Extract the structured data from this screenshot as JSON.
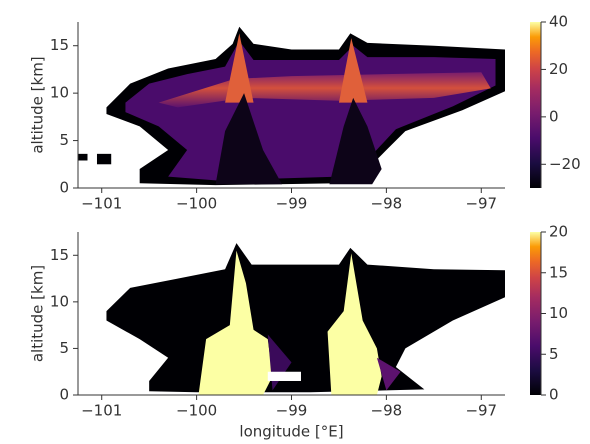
{
  "chart_data": [
    {
      "type": "heatmap",
      "ylabel": "altitude [km]",
      "colormap": "inferno",
      "xlim": [
        -101.25,
        -96.75
      ],
      "ylim": [
        0,
        17.5
      ],
      "xticks": [
        {
          "value": -101,
          "label": "−101"
        },
        {
          "value": -100,
          "label": "−100"
        },
        {
          "value": -99,
          "label": "−99"
        },
        {
          "value": -98,
          "label": "−98"
        },
        {
          "value": -97,
          "label": "−97"
        }
      ],
      "yticks": [
        0,
        5,
        10,
        15
      ],
      "colorbar_lim": [
        -30,
        40
      ],
      "colorbar_ticks": [
        {
          "value": -20,
          "label": "−20"
        },
        0,
        20,
        40
      ]
    },
    {
      "type": "heatmap",
      "ylabel": "altitude [km]",
      "xlabel": "longitude [°E]",
      "colormap": "inferno",
      "xlim": [
        -101.25,
        -96.75
      ],
      "ylim": [
        0,
        17.5
      ],
      "xticks": [
        {
          "value": -101,
          "label": "−101"
        },
        {
          "value": -100,
          "label": "−100"
        },
        {
          "value": -99,
          "label": "−99"
        },
        {
          "value": -98,
          "label": "−98"
        },
        {
          "value": -97,
          "label": "−97"
        }
      ],
      "yticks": [
        0,
        5,
        10,
        15
      ],
      "colorbar_lim": [
        0,
        20
      ],
      "colorbar_ticks": [
        0,
        5,
        10,
        15,
        20
      ]
    }
  ]
}
